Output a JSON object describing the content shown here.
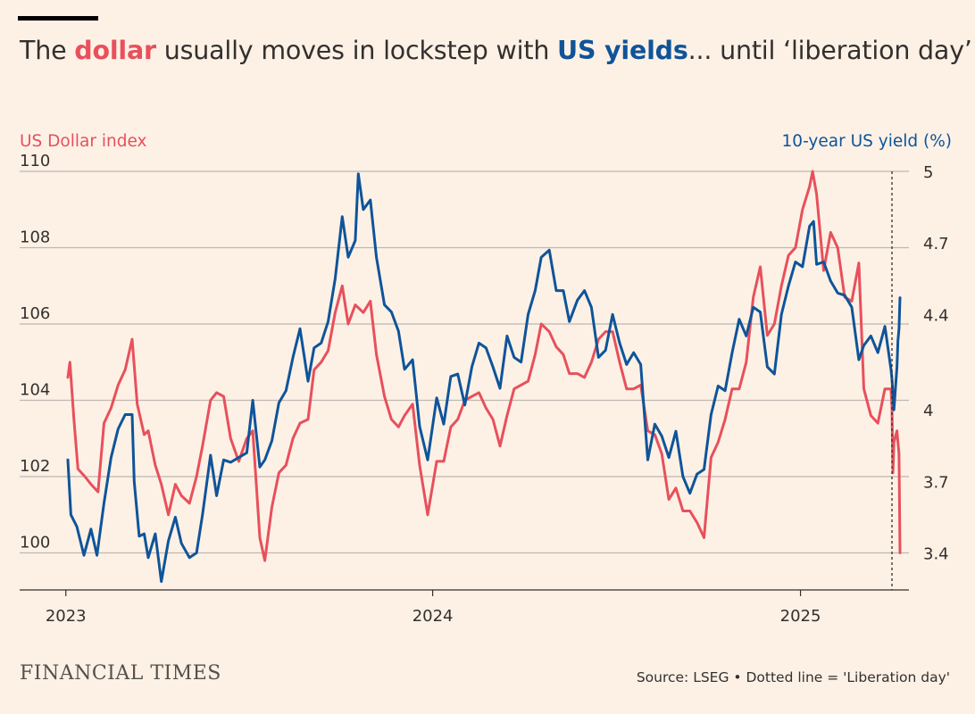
{
  "header": {
    "title_1": "The ",
    "title_dollar": "dollar",
    "title_2": " usually moves in lockstep with ",
    "title_yields": "US yields",
    "title_3": "... until ‘liberation day’"
  },
  "footer": {
    "brand": "FINANCIAL TIMES",
    "source": "Source: LSEG • Dotted line = 'Liberation day'"
  },
  "colors": {
    "dollar": "#e8505b",
    "yield": "#0f5499",
    "grid": "#bfb7b1",
    "background": "#fdf1e6"
  },
  "chart_data": {
    "type": "line",
    "x_start": "2023-01-03",
    "x_end": "2025-04-10",
    "event_date": "2025-04-02",
    "left_axis": {
      "label": "US Dollar index",
      "ticks": [
        100,
        102,
        104,
        106,
        108,
        110
      ],
      "range": [
        99,
        110
      ]
    },
    "right_axis": {
      "label": "10-year US yield (%)",
      "ticks": [
        "3.4",
        "3.7",
        "4",
        "4.4",
        "4.7",
        "5"
      ],
      "tick_values": [
        3.4,
        3.7,
        4.0,
        4.4,
        4.7,
        5.0
      ],
      "range": [
        3.25,
        5.0
      ]
    },
    "x_ticks": [
      {
        "date": "2023-01-01",
        "label": "2023"
      },
      {
        "date": "2024-01-01",
        "label": "2024"
      },
      {
        "date": "2025-01-01",
        "label": "2025"
      }
    ],
    "grid": true,
    "series": [
      {
        "name": "US Dollar index",
        "axis": "left",
        "points": [
          [
            "2023-01-03",
            104.6
          ],
          [
            "2023-01-05",
            105.0
          ],
          [
            "2023-01-09",
            103.5
          ],
          [
            "2023-01-13",
            102.2
          ],
          [
            "2023-01-20",
            102.0
          ],
          [
            "2023-01-26",
            101.8
          ],
          [
            "2023-02-02",
            101.6
          ],
          [
            "2023-02-08",
            103.4
          ],
          [
            "2023-02-15",
            103.8
          ],
          [
            "2023-02-22",
            104.4
          ],
          [
            "2023-03-01",
            104.8
          ],
          [
            "2023-03-08",
            105.6
          ],
          [
            "2023-03-13",
            103.9
          ],
          [
            "2023-03-20",
            103.1
          ],
          [
            "2023-03-24",
            103.2
          ],
          [
            "2023-03-31",
            102.3
          ],
          [
            "2023-04-06",
            101.8
          ],
          [
            "2023-04-13",
            101.0
          ],
          [
            "2023-04-20",
            101.8
          ],
          [
            "2023-04-26",
            101.5
          ],
          [
            "2023-05-04",
            101.3
          ],
          [
            "2023-05-11",
            102.0
          ],
          [
            "2023-05-17",
            102.8
          ],
          [
            "2023-05-25",
            104.0
          ],
          [
            "2023-05-31",
            104.2
          ],
          [
            "2023-06-07",
            104.1
          ],
          [
            "2023-06-14",
            103.0
          ],
          [
            "2023-06-22",
            102.4
          ],
          [
            "2023-06-30",
            103.0
          ],
          [
            "2023-07-06",
            103.2
          ],
          [
            "2023-07-13",
            100.4
          ],
          [
            "2023-07-18",
            99.8
          ],
          [
            "2023-07-25",
            101.2
          ],
          [
            "2023-08-01",
            102.1
          ],
          [
            "2023-08-08",
            102.3
          ],
          [
            "2023-08-15",
            103.0
          ],
          [
            "2023-08-22",
            103.4
          ],
          [
            "2023-08-30",
            103.5
          ],
          [
            "2023-09-05",
            104.8
          ],
          [
            "2023-09-12",
            105.0
          ],
          [
            "2023-09-19",
            105.3
          ],
          [
            "2023-09-26",
            106.3
          ],
          [
            "2023-10-03",
            107.0
          ],
          [
            "2023-10-09",
            106.0
          ],
          [
            "2023-10-16",
            106.5
          ],
          [
            "2023-10-24",
            106.3
          ],
          [
            "2023-10-31",
            106.6
          ],
          [
            "2023-11-06",
            105.2
          ],
          [
            "2023-11-14",
            104.1
          ],
          [
            "2023-11-21",
            103.5
          ],
          [
            "2023-11-28",
            103.3
          ],
          [
            "2023-12-04",
            103.6
          ],
          [
            "2023-12-12",
            103.9
          ],
          [
            "2023-12-19",
            102.3
          ],
          [
            "2023-12-27",
            101.0
          ],
          [
            "2024-01-05",
            102.4
          ],
          [
            "2024-01-12",
            102.4
          ],
          [
            "2024-01-19",
            103.3
          ],
          [
            "2024-01-26",
            103.5
          ],
          [
            "2024-02-02",
            104.0
          ],
          [
            "2024-02-09",
            104.1
          ],
          [
            "2024-02-16",
            104.2
          ],
          [
            "2024-02-23",
            103.8
          ],
          [
            "2024-03-01",
            103.5
          ],
          [
            "2024-03-08",
            102.8
          ],
          [
            "2024-03-15",
            103.6
          ],
          [
            "2024-03-22",
            104.3
          ],
          [
            "2024-03-29",
            104.4
          ],
          [
            "2024-04-05",
            104.5
          ],
          [
            "2024-04-12",
            105.2
          ],
          [
            "2024-04-18",
            106.0
          ],
          [
            "2024-04-26",
            105.8
          ],
          [
            "2024-05-03",
            105.4
          ],
          [
            "2024-05-10",
            105.2
          ],
          [
            "2024-05-16",
            104.7
          ],
          [
            "2024-05-24",
            104.7
          ],
          [
            "2024-05-31",
            104.6
          ],
          [
            "2024-06-07",
            105.0
          ],
          [
            "2024-06-14",
            105.6
          ],
          [
            "2024-06-21",
            105.8
          ],
          [
            "2024-06-28",
            105.8
          ],
          [
            "2024-07-05",
            105.0
          ],
          [
            "2024-07-12",
            104.3
          ],
          [
            "2024-07-19",
            104.3
          ],
          [
            "2024-07-26",
            104.4
          ],
          [
            "2024-08-02",
            103.2
          ],
          [
            "2024-08-09",
            103.1
          ],
          [
            "2024-08-16",
            102.6
          ],
          [
            "2024-08-23",
            101.4
          ],
          [
            "2024-08-30",
            101.7
          ],
          [
            "2024-09-06",
            101.1
          ],
          [
            "2024-09-13",
            101.1
          ],
          [
            "2024-09-20",
            100.8
          ],
          [
            "2024-09-27",
            100.4
          ],
          [
            "2024-10-04",
            102.5
          ],
          [
            "2024-10-11",
            102.9
          ],
          [
            "2024-10-18",
            103.5
          ],
          [
            "2024-10-25",
            104.3
          ],
          [
            "2024-11-01",
            104.3
          ],
          [
            "2024-11-08",
            105.0
          ],
          [
            "2024-11-15",
            106.7
          ],
          [
            "2024-11-22",
            107.5
          ],
          [
            "2024-11-29",
            105.7
          ],
          [
            "2024-12-06",
            106.0
          ],
          [
            "2024-12-13",
            107.0
          ],
          [
            "2024-12-20",
            107.8
          ],
          [
            "2024-12-27",
            108.0
          ],
          [
            "2025-01-03",
            109.0
          ],
          [
            "2025-01-10",
            109.6
          ],
          [
            "2025-01-13",
            110.0
          ],
          [
            "2025-01-17",
            109.4
          ],
          [
            "2025-01-24",
            107.4
          ],
          [
            "2025-01-31",
            108.4
          ],
          [
            "2025-02-07",
            108.0
          ],
          [
            "2025-02-14",
            106.7
          ],
          [
            "2025-02-21",
            106.6
          ],
          [
            "2025-02-28",
            107.6
          ],
          [
            "2025-03-05",
            104.3
          ],
          [
            "2025-03-12",
            103.6
          ],
          [
            "2025-03-19",
            103.4
          ],
          [
            "2025-03-26",
            104.3
          ],
          [
            "2025-04-01",
            104.3
          ],
          [
            "2025-04-02",
            103.8
          ],
          [
            "2025-04-03",
            102.1
          ],
          [
            "2025-04-04",
            102.9
          ],
          [
            "2025-04-07",
            103.2
          ],
          [
            "2025-04-08",
            102.9
          ],
          [
            "2025-04-09",
            102.6
          ],
          [
            "2025-04-10",
            100.0
          ]
        ]
      },
      {
        "name": "10-year US yield (%)",
        "axis": "right",
        "points": [
          [
            "2023-01-03",
            3.79
          ],
          [
            "2023-01-06",
            3.56
          ],
          [
            "2023-01-12",
            3.51
          ],
          [
            "2023-01-19",
            3.39
          ],
          [
            "2023-01-26",
            3.5
          ],
          [
            "2023-02-01",
            3.39
          ],
          [
            "2023-02-08",
            3.61
          ],
          [
            "2023-02-15",
            3.8
          ],
          [
            "2023-02-22",
            3.92
          ],
          [
            "2023-03-01",
            3.98
          ],
          [
            "2023-03-08",
            3.98
          ],
          [
            "2023-03-10",
            3.7
          ],
          [
            "2023-03-15",
            3.47
          ],
          [
            "2023-03-20",
            3.48
          ],
          [
            "2023-03-24",
            3.38
          ],
          [
            "2023-03-31",
            3.48
          ],
          [
            "2023-04-06",
            3.28
          ],
          [
            "2023-04-13",
            3.45
          ],
          [
            "2023-04-20",
            3.55
          ],
          [
            "2023-04-26",
            3.44
          ],
          [
            "2023-05-04",
            3.38
          ],
          [
            "2023-05-11",
            3.4
          ],
          [
            "2023-05-17",
            3.56
          ],
          [
            "2023-05-25",
            3.81
          ],
          [
            "2023-05-31",
            3.64
          ],
          [
            "2023-06-07",
            3.79
          ],
          [
            "2023-06-14",
            3.78
          ],
          [
            "2023-06-22",
            3.8
          ],
          [
            "2023-06-30",
            3.82
          ],
          [
            "2023-07-06",
            4.04
          ],
          [
            "2023-07-13",
            3.76
          ],
          [
            "2023-07-18",
            3.79
          ],
          [
            "2023-07-25",
            3.87
          ],
          [
            "2023-08-01",
            4.03
          ],
          [
            "2023-08-08",
            4.08
          ],
          [
            "2023-08-15",
            4.22
          ],
          [
            "2023-08-22",
            4.34
          ],
          [
            "2023-08-30",
            4.12
          ],
          [
            "2023-09-05",
            4.26
          ],
          [
            "2023-09-12",
            4.28
          ],
          [
            "2023-09-19",
            4.37
          ],
          [
            "2023-09-26",
            4.55
          ],
          [
            "2023-10-03",
            4.81
          ],
          [
            "2023-10-09",
            4.64
          ],
          [
            "2023-10-16",
            4.71
          ],
          [
            "2023-10-19",
            4.99
          ],
          [
            "2023-10-24",
            4.84
          ],
          [
            "2023-10-31",
            4.88
          ],
          [
            "2023-11-06",
            4.64
          ],
          [
            "2023-11-14",
            4.44
          ],
          [
            "2023-11-21",
            4.41
          ],
          [
            "2023-11-28",
            4.33
          ],
          [
            "2023-12-04",
            4.17
          ],
          [
            "2023-12-12",
            4.21
          ],
          [
            "2023-12-19",
            3.93
          ],
          [
            "2023-12-27",
            3.79
          ],
          [
            "2024-01-05",
            4.05
          ],
          [
            "2024-01-12",
            3.94
          ],
          [
            "2024-01-19",
            4.14
          ],
          [
            "2024-01-26",
            4.15
          ],
          [
            "2024-02-02",
            4.02
          ],
          [
            "2024-02-09",
            4.18
          ],
          [
            "2024-02-16",
            4.28
          ],
          [
            "2024-02-23",
            4.26
          ],
          [
            "2024-03-01",
            4.18
          ],
          [
            "2024-03-08",
            4.09
          ],
          [
            "2024-03-15",
            4.31
          ],
          [
            "2024-03-22",
            4.22
          ],
          [
            "2024-03-29",
            4.2
          ],
          [
            "2024-04-05",
            4.4
          ],
          [
            "2024-04-12",
            4.5
          ],
          [
            "2024-04-18",
            4.64
          ],
          [
            "2024-04-26",
            4.67
          ],
          [
            "2024-05-03",
            4.5
          ],
          [
            "2024-05-10",
            4.5
          ],
          [
            "2024-05-16",
            4.37
          ],
          [
            "2024-05-24",
            4.46
          ],
          [
            "2024-05-31",
            4.5
          ],
          [
            "2024-06-07",
            4.43
          ],
          [
            "2024-06-14",
            4.22
          ],
          [
            "2024-06-21",
            4.25
          ],
          [
            "2024-06-28",
            4.4
          ],
          [
            "2024-07-05",
            4.28
          ],
          [
            "2024-07-12",
            4.19
          ],
          [
            "2024-07-19",
            4.24
          ],
          [
            "2024-07-26",
            4.19
          ],
          [
            "2024-08-02",
            3.79
          ],
          [
            "2024-08-09",
            3.94
          ],
          [
            "2024-08-16",
            3.89
          ],
          [
            "2024-08-23",
            3.8
          ],
          [
            "2024-08-30",
            3.91
          ],
          [
            "2024-09-06",
            3.72
          ],
          [
            "2024-09-13",
            3.65
          ],
          [
            "2024-09-20",
            3.73
          ],
          [
            "2024-09-27",
            3.75
          ],
          [
            "2024-10-04",
            3.98
          ],
          [
            "2024-10-11",
            4.1
          ],
          [
            "2024-10-18",
            4.08
          ],
          [
            "2024-10-25",
            4.24
          ],
          [
            "2024-11-01",
            4.38
          ],
          [
            "2024-11-08",
            4.31
          ],
          [
            "2024-11-15",
            4.43
          ],
          [
            "2024-11-22",
            4.41
          ],
          [
            "2024-11-29",
            4.18
          ],
          [
            "2024-12-06",
            4.15
          ],
          [
            "2024-12-13",
            4.4
          ],
          [
            "2024-12-20",
            4.52
          ],
          [
            "2024-12-27",
            4.62
          ],
          [
            "2025-01-03",
            4.6
          ],
          [
            "2025-01-10",
            4.77
          ],
          [
            "2025-01-14",
            4.79
          ],
          [
            "2025-01-17",
            4.61
          ],
          [
            "2025-01-24",
            4.62
          ],
          [
            "2025-01-31",
            4.54
          ],
          [
            "2025-02-07",
            4.49
          ],
          [
            "2025-02-14",
            4.48
          ],
          [
            "2025-02-21",
            4.43
          ],
          [
            "2025-02-28",
            4.21
          ],
          [
            "2025-03-05",
            4.27
          ],
          [
            "2025-03-12",
            4.31
          ],
          [
            "2025-03-19",
            4.24
          ],
          [
            "2025-03-26",
            4.35
          ],
          [
            "2025-04-01",
            4.17
          ],
          [
            "2025-04-02",
            4.13
          ],
          [
            "2025-04-03",
            4.06
          ],
          [
            "2025-04-04",
            4.0
          ],
          [
            "2025-04-07",
            4.18
          ],
          [
            "2025-04-08",
            4.29
          ],
          [
            "2025-04-09",
            4.34
          ],
          [
            "2025-04-10",
            4.47
          ]
        ]
      }
    ]
  }
}
